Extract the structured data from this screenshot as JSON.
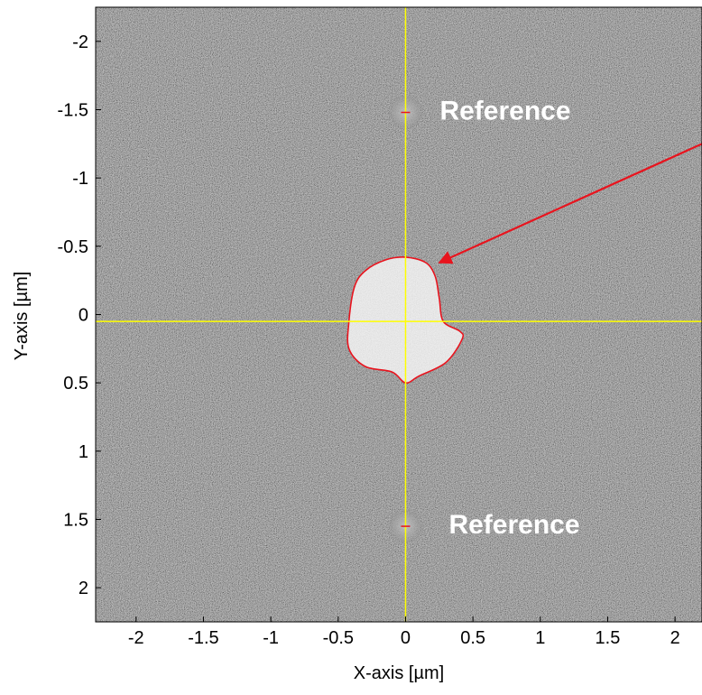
{
  "figure": {
    "xlabel": "X-axis [µm]",
    "ylabel": "Y-axis [µm]",
    "xticks": [
      "-2",
      "-1.5",
      "-1",
      "-0.5",
      "0",
      "0.5",
      "1",
      "1.5",
      "2"
    ],
    "yticks": [
      "-2",
      "-1.5",
      "-1",
      "-0.5",
      "0",
      "0.5",
      "1",
      "1.5",
      "2"
    ],
    "xlim": [
      -2.3,
      2.2
    ],
    "ylim": [
      -2.25,
      2.25
    ],
    "y_direction": "reversed (negative at top)",
    "crosshair_color": "#ffff00",
    "contour_color": "#e8141e",
    "arrow_color": "#e8141e",
    "background_style": "dark gray speckle noise"
  },
  "annotations": {
    "reference_top": {
      "label": "Reference",
      "x": 0.0,
      "y": -1.48
    },
    "reference_bottom": {
      "label": "Reference",
      "x": 0.0,
      "y": 1.55
    },
    "arrow": {
      "from": [
        2.2,
        -1.25
      ],
      "to": [
        0.25,
        -0.38
      ]
    }
  },
  "particle": {
    "center": [
      0.0,
      0.05
    ],
    "contour": [
      [
        0.0,
        -0.42
      ],
      [
        0.15,
        -0.38
      ],
      [
        0.22,
        -0.28
      ],
      [
        0.25,
        -0.12
      ],
      [
        0.28,
        0.05
      ],
      [
        0.4,
        0.12
      ],
      [
        0.42,
        0.18
      ],
      [
        0.3,
        0.35
      ],
      [
        0.1,
        0.45
      ],
      [
        0.0,
        0.5
      ],
      [
        -0.1,
        0.42
      ],
      [
        -0.3,
        0.38
      ],
      [
        -0.42,
        0.25
      ],
      [
        -0.42,
        0.05
      ],
      [
        -0.38,
        -0.2
      ],
      [
        -0.3,
        -0.32
      ],
      [
        -0.15,
        -0.4
      ]
    ]
  },
  "chart_data": {
    "type": "scatter",
    "xlabel": "X-axis [µm]",
    "ylabel": "Y-axis [µm]",
    "xlim": [
      -2.3,
      2.2
    ],
    "ylim": [
      2.25,
      -2.25
    ],
    "xticks": [
      -2,
      -1.5,
      -1,
      -0.5,
      0,
      0.5,
      1,
      1.5,
      2
    ],
    "yticks": [
      -2,
      -1.5,
      -1,
      -0.5,
      0,
      0.5,
      1,
      1.5,
      2
    ],
    "grid": false,
    "annotations": [
      "Reference",
      "Reference"
    ],
    "points": [
      {
        "x": 0.0,
        "y": -1.48
      },
      {
        "x": 0.0,
        "y": 1.55
      }
    ]
  }
}
